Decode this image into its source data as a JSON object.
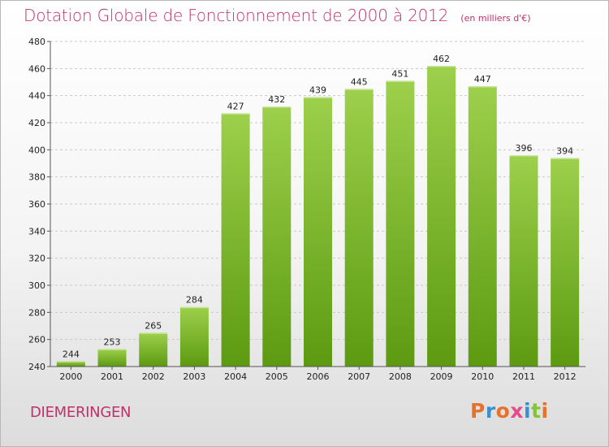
{
  "header": {
    "title": "Dotation Globale de Fonctionnement de 2000 à 2012",
    "subtitle": "(en milliers d'€)"
  },
  "commune": "DIEMERINGEN",
  "logo": {
    "text": "Proxiti",
    "colors": [
      "#e8712a",
      "#3a8fd1",
      "#e8712a",
      "#e84a8a",
      "#3a8fd1",
      "#86c23a",
      "#e8712a"
    ]
  },
  "colors": {
    "bar_top": "#9dd04c",
    "bar_bottom": "#5c9a12",
    "title": "#c0306a",
    "grid": "#c8c8c8"
  },
  "chart_data": {
    "type": "bar",
    "categories": [
      "2000",
      "2001",
      "2002",
      "2003",
      "2004",
      "2005",
      "2006",
      "2007",
      "2008",
      "2009",
      "2010",
      "2011",
      "2012"
    ],
    "values": [
      244,
      253,
      265,
      284,
      427,
      432,
      439,
      445,
      451,
      462,
      447,
      396,
      394
    ],
    "ylim": [
      240,
      480
    ],
    "yticks": [
      240,
      260,
      280,
      300,
      320,
      340,
      360,
      380,
      400,
      420,
      440,
      460,
      480
    ],
    "grid": "horizontal dashed"
  }
}
